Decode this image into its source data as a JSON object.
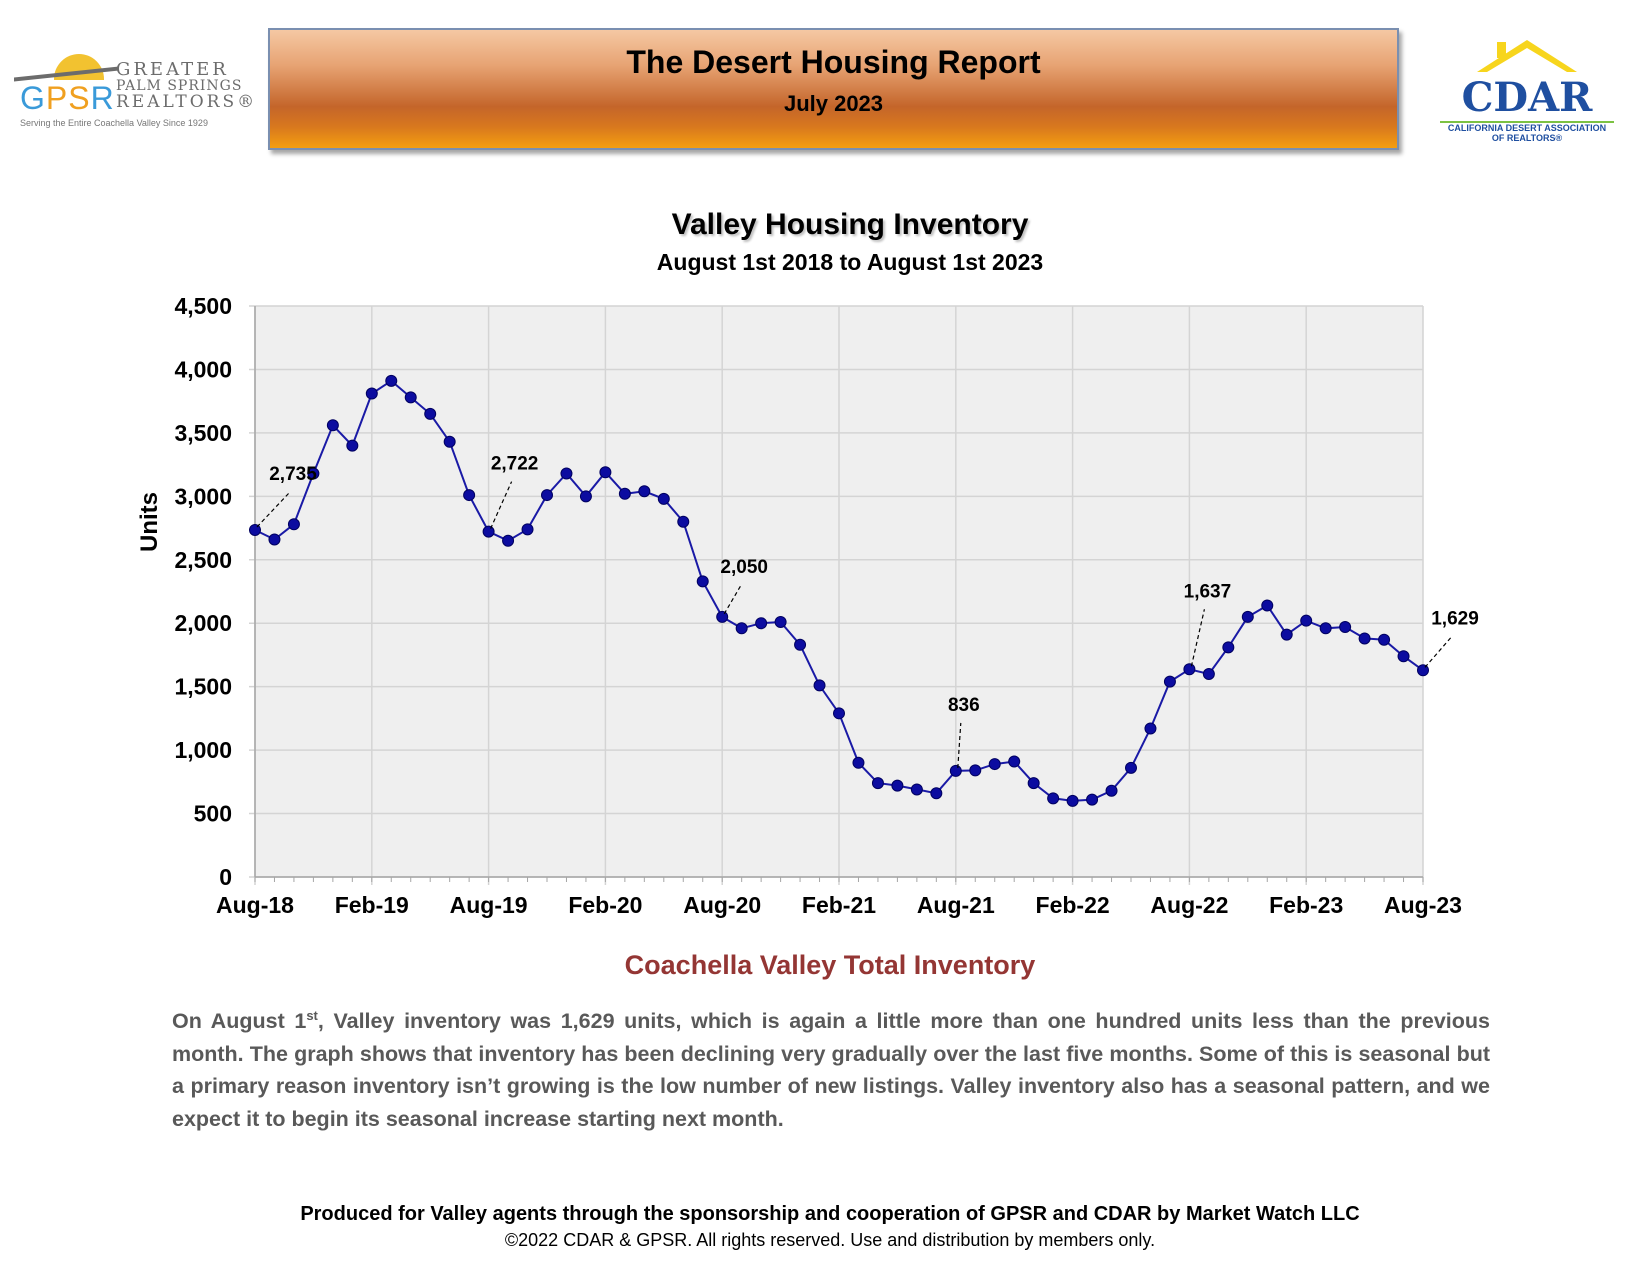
{
  "header": {
    "report_title": "The Desert Housing Report",
    "report_date": "July 2023",
    "gpsr_logo": {
      "abbr_1": "G",
      "abbr_2": "PS",
      "abbr_3": "R",
      "word_1": "GREATER",
      "word_2": "PALM SPRINGS",
      "word_3": "REALTORS®",
      "tagline": "Serving the Entire Coachella Valley Since 1929"
    },
    "cdar_logo": {
      "name": "CDAR",
      "sub_1": "CALIFORNIA DESERT ASSOCIATION",
      "sub_2": "OF REALTORS®"
    }
  },
  "chart_data": {
    "type": "line",
    "title": "Valley Housing Inventory",
    "subtitle": "August 1st 2018 to August 1st 2023",
    "ylabel": "Units",
    "xlabel": "",
    "ylim": [
      0,
      4500
    ],
    "yticks": [
      0,
      500,
      1000,
      1500,
      2000,
      2500,
      3000,
      3500,
      4000,
      4500
    ],
    "ytick_labels": [
      "0",
      "500",
      "1,000",
      "1,500",
      "2,000",
      "2,500",
      "3,000",
      "3,500",
      "4,000",
      "4,500"
    ],
    "xtick_labels": [
      "Aug-18",
      "Feb-19",
      "Aug-19",
      "Feb-20",
      "Aug-20",
      "Feb-21",
      "Aug-21",
      "Feb-22",
      "Aug-22",
      "Feb-23",
      "Aug-23"
    ],
    "grid": true,
    "series_color": "#1a1aa6",
    "marker_color": "#0c0ca0",
    "plot_background": "#efefef",
    "values": [
      2735,
      2660,
      2780,
      3180,
      3560,
      3400,
      3810,
      3910,
      3780,
      3650,
      3430,
      3010,
      2722,
      2650,
      2740,
      3010,
      3180,
      3000,
      3190,
      3020,
      3040,
      2980,
      2800,
      2330,
      2050,
      1960,
      2000,
      2010,
      1830,
      1510,
      1290,
      900,
      740,
      720,
      690,
      660,
      836,
      840,
      890,
      910,
      740,
      620,
      600,
      610,
      680,
      860,
      1170,
      1540,
      1637,
      1600,
      1810,
      2050,
      2140,
      1910,
      2020,
      1960,
      1970,
      1880,
      1870,
      1740,
      1629
    ],
    "annotations": [
      {
        "index": 0,
        "label": "2,735"
      },
      {
        "index": 12,
        "label": "2,722"
      },
      {
        "index": 24,
        "label": "2,050"
      },
      {
        "index": 36,
        "label": "836"
      },
      {
        "index": 48,
        "label": "1,637"
      },
      {
        "index": 60,
        "label": "1,629"
      }
    ]
  },
  "body": {
    "section_title": "Coachella Valley Total Inventory",
    "para_lead": "On August 1",
    "para_sup": "st",
    "para_rest": ", Valley inventory was 1,629 units, which is again a little more than one hundred units less than the previous month. The graph shows that inventory has been declining very gradually over the last five months. Some of this is seasonal but a primary reason inventory isn’t growing is the low number of new listings. Valley inventory also has a seasonal pattern, and we expect it to begin its seasonal increase starting next month."
  },
  "footer": {
    "line1": "Produced for Valley agents through the sponsorship and cooperation of GPSR and CDAR by Market Watch LLC",
    "line2": "©2022 CDAR & GPSR.  All rights reserved.  Use and distribution by members only."
  }
}
